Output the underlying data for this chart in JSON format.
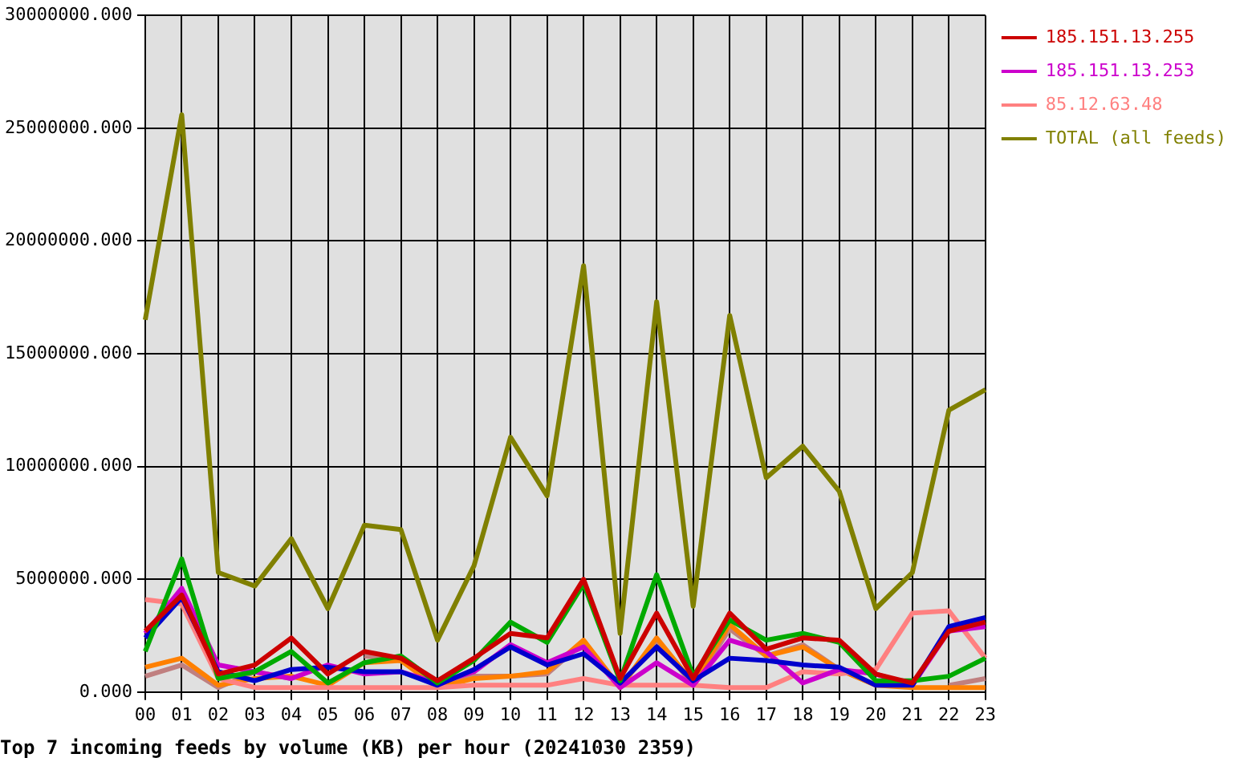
{
  "chart_data": {
    "type": "line",
    "title": "Top 7 incoming feeds by volume (KB) per hour (20241030 2359)",
    "categories": [
      "00",
      "01",
      "02",
      "03",
      "04",
      "05",
      "06",
      "07",
      "08",
      "09",
      "10",
      "11",
      "12",
      "13",
      "14",
      "15",
      "16",
      "17",
      "18",
      "19",
      "20",
      "21",
      "22",
      "23"
    ],
    "ylim": [
      0,
      30000000
    ],
    "yticks": [
      {
        "value": 0,
        "label": "0.000"
      },
      {
        "value": 5000000,
        "label": "5000000.000"
      },
      {
        "value": 10000000,
        "label": "10000000.000"
      },
      {
        "value": 15000000,
        "label": "15000000.000"
      },
      {
        "value": 20000000,
        "label": "20000000.000"
      },
      {
        "value": 25000000,
        "label": "25000000.000"
      },
      {
        "value": 30000000,
        "label": "30000000.000"
      }
    ],
    "grid": true,
    "legend": "right",
    "marker": "none",
    "line_style": "solid",
    "series": [
      {
        "name": "185.151.13.255",
        "color": "#cc0000",
        "values": [
          2700000,
          4300000,
          800000,
          1200000,
          2400000,
          800000,
          1800000,
          1500000,
          500000,
          1500000,
          2600000,
          2400000,
          5000000,
          600000,
          3500000,
          600000,
          3500000,
          1900000,
          2400000,
          2300000,
          800000,
          400000,
          2700000,
          3100000
        ]
      },
      {
        "color": "#00aa00",
        "values": [
          1800000,
          5900000,
          600000,
          900000,
          1800000,
          400000,
          1300000,
          1600000,
          400000,
          1400000,
          3100000,
          2200000,
          4800000,
          500000,
          5200000,
          700000,
          3200000,
          2300000,
          2600000,
          2200000,
          500000,
          500000,
          700000,
          1500000
        ]
      },
      {
        "color": "#0000cc",
        "values": [
          2400000,
          4200000,
          900000,
          500000,
          1000000,
          1100000,
          900000,
          900000,
          300000,
          1000000,
          2000000,
          1200000,
          1700000,
          400000,
          2000000,
          500000,
          1500000,
          1400000,
          1200000,
          1100000,
          300000,
          300000,
          2900000,
          3300000
        ]
      },
      {
        "name": "185.151.13.253",
        "color": "#cc00cc",
        "values": [
          2600000,
          4600000,
          1200000,
          900000,
          600000,
          1200000,
          800000,
          900000,
          400000,
          900000,
          2100000,
          1300000,
          2000000,
          200000,
          1300000,
          300000,
          2300000,
          1800000,
          400000,
          1000000,
          800000,
          300000,
          2700000,
          2900000
        ]
      },
      {
        "name": "85.12.63.48",
        "color": "#ff8080",
        "values": [
          4100000,
          3900000,
          600000,
          200000,
          200000,
          200000,
          200000,
          200000,
          200000,
          300000,
          300000,
          300000,
          600000,
          300000,
          300000,
          300000,
          200000,
          200000,
          900000,
          800000,
          1000000,
          3500000,
          3600000,
          1500000
        ]
      },
      {
        "color": "#ff8000",
        "values": [
          1100000,
          1500000,
          300000,
          600000,
          700000,
          300000,
          1300000,
          1400000,
          200000,
          600000,
          700000,
          900000,
          2300000,
          200000,
          2400000,
          400000,
          3000000,
          1600000,
          2000000,
          1000000,
          300000,
          200000,
          200000,
          200000
        ]
      },
      {
        "color": "#c08080",
        "values": [
          700000,
          1200000,
          200000,
          900000,
          600000,
          null,
          1600000,
          1400000,
          300000,
          700000,
          700000,
          800000,
          2200000,
          200000,
          2300000,
          300000,
          2800000,
          1600000,
          2100000,
          1000000,
          300000,
          null,
          300000,
          600000
        ]
      },
      {
        "name": "TOTAL (all feeds)",
        "color": "#808000",
        "values": [
          16500000,
          25600000,
          5300000,
          4700000,
          6800000,
          3700000,
          7400000,
          7200000,
          2300000,
          5600000,
          11300000,
          8700000,
          18900000,
          2600000,
          17300000,
          3800000,
          16700000,
          9500000,
          10900000,
          8900000,
          3700000,
          5300000,
          12500000,
          13400000
        ]
      }
    ]
  }
}
